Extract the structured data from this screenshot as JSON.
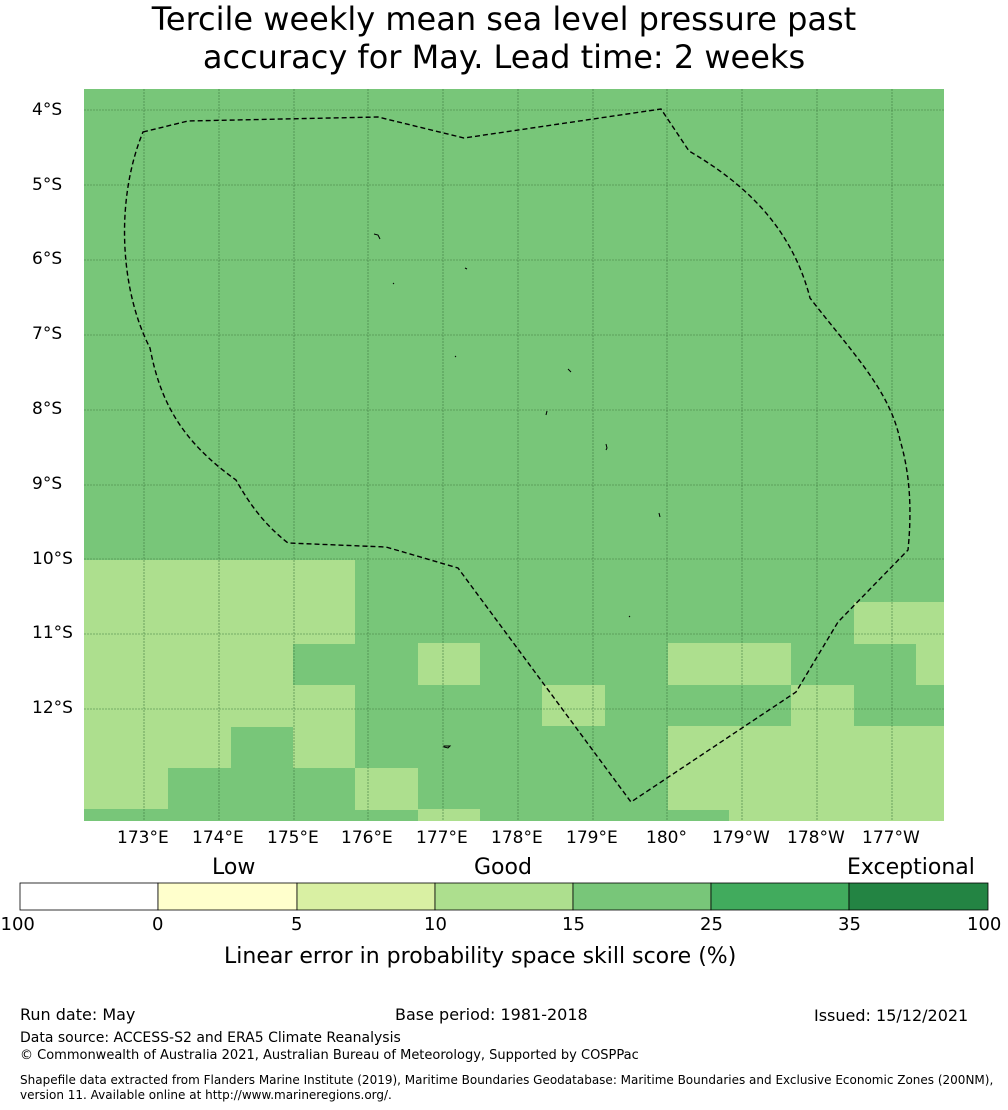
{
  "title_line1": "Tercile weekly mean sea level pressure past",
  "title_line2": "accuracy for May. Lead time: 2 weeks",
  "map": {
    "lon_labels": [
      "173°E",
      "174°E",
      "175°E",
      "176°E",
      "177°E",
      "178°E",
      "179°E",
      "180°",
      "179°W",
      "178°W",
      "177°W"
    ],
    "lat_labels": [
      "4°S",
      "5°S",
      "6°S",
      "7°S",
      "8°S",
      "9°S",
      "10°S",
      "11°S",
      "12°S"
    ],
    "colors": {
      "c10_15": "#addf8e",
      "c15_25": "#78c679",
      "grid": "#3f7a3f",
      "boundary": "#000000"
    },
    "grid_values": [
      "2222222222222",
      "2222222222222",
      "2222222222222",
      "2222222222222",
      "2222222222222",
      "2222222222222",
      "2222222222222",
      "2222222222222",
      "2222222222222",
      "2222222222222",
      "2222222222222",
      "2222222222222",
      "2222222222222",
      "2222222222222",
      "2222222222222",
      "2222222222222",
      "2222222222222",
      "2222222222222"
    ]
  },
  "colorbar": {
    "categories": [
      "Low",
      "Good",
      "Exceptional"
    ],
    "ticks": [
      "-100",
      "0",
      "5",
      "10",
      "15",
      "25",
      "35",
      "100"
    ],
    "colors": [
      "#ffffff",
      "#ffffcc",
      "#d9f0a3",
      "#addf8e",
      "#78c679",
      "#41ab5d",
      "#238443"
    ],
    "label": "Linear error in probability space skill score (%)"
  },
  "footer": {
    "run_date": "Run date: May",
    "base_period": "Base period: 1981-2018",
    "issued": "Issued: 15/12/2021",
    "data_source": "Data source: ACCESS-S2 and ERA5 Climate Reanalysis",
    "copyright": "© Commonwealth of Australia 2021, Australian Bureau of Meteorology, Supported by COSPPac",
    "shapefile_line1": "Shapefile data extracted from Flanders Marine Institute (2019), Maritime Boundaries Geodatabase: Maritime Boundaries and Exclusive Economic Zones (200NM),",
    "shapefile_line2": "version 11. Available online at http://www.marineregions.org/."
  }
}
